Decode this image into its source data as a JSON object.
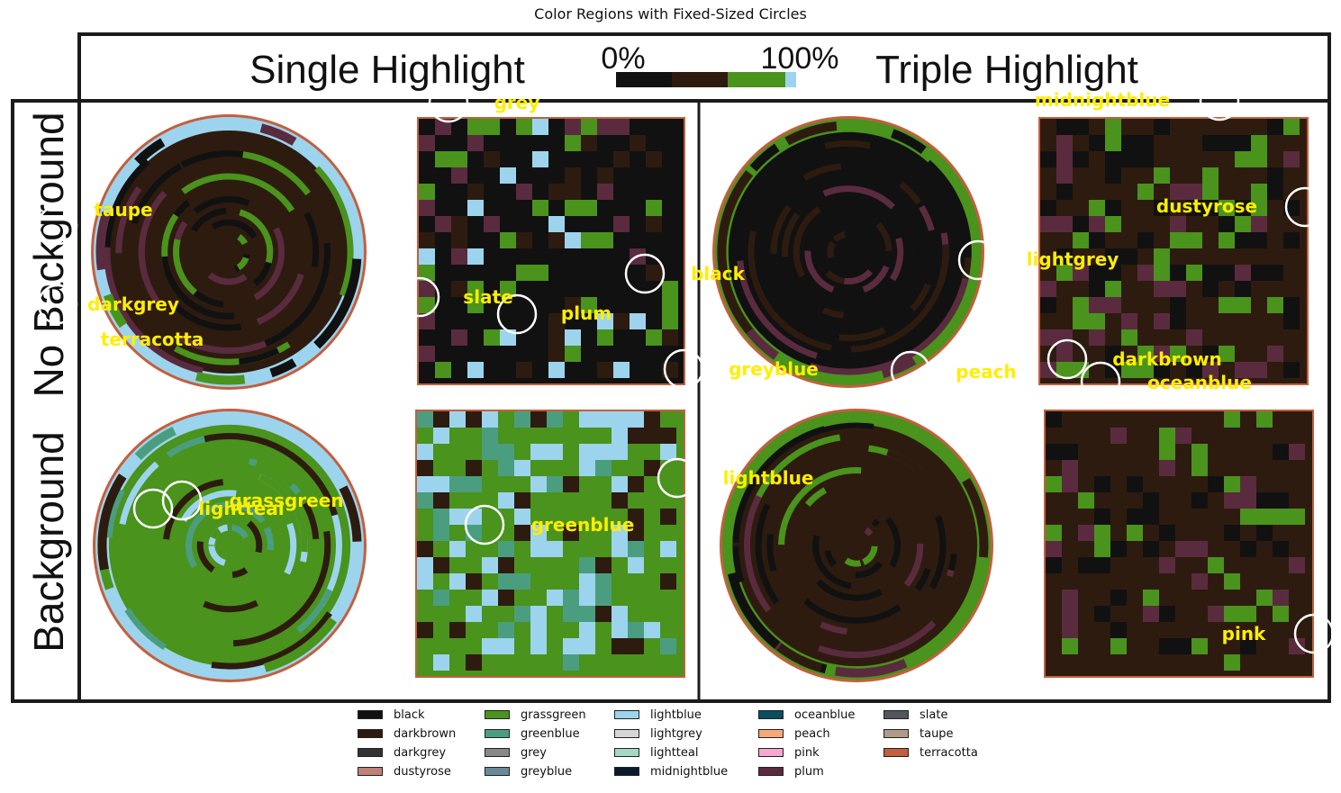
{
  "title": "Color Regions with Fixed-Sized Circles",
  "figure": {
    "header_left": "Single Highlight",
    "header_right": "Triple Highlight",
    "scale_min": "0%",
    "scale_max": "100%",
    "row_top": "No Background",
    "row_bottom": "Background"
  },
  "chart_data": {
    "type": "annotated-image",
    "title": "Color Regions with Fixed-Sized Circles",
    "colors": {
      "black": "#111111",
      "darkbrown": "#2e1b0f",
      "darkgrey": "#333333",
      "dustyrose": "#c0807a",
      "grassgreen": "#4a931c",
      "greenblue": "#4a9e7f",
      "grey": "#888888",
      "greyblue": "#6b8a99",
      "lightblue": "#9cd4ee",
      "lightgrey": "#d6d6d6",
      "lightteal": "#a3d9c4",
      "midnightblue": "#0b1a2a",
      "oceanblue": "#0a4e63",
      "peach": "#f7a878",
      "pink": "#f5a8d0",
      "plum": "#5a2b3f",
      "slate": "#50565c",
      "taupe": "#b09a87",
      "terracotta": "#c35f3e"
    },
    "annotations": [
      {
        "label": "grey"
      },
      {
        "label": "taupe"
      },
      {
        "label": "darkgrey"
      },
      {
        "label": "terracotta"
      },
      {
        "label": "slate"
      },
      {
        "label": "plum"
      },
      {
        "label": "black"
      },
      {
        "label": "greyblue"
      },
      {
        "label": "midnightblue"
      },
      {
        "label": "dustyrose"
      },
      {
        "label": "lightgrey"
      },
      {
        "label": "peach"
      },
      {
        "label": "darkbrown"
      },
      {
        "label": "oceanblue"
      },
      {
        "label": "grassgreen"
      },
      {
        "label": "lightteal"
      },
      {
        "label": "greenblue"
      },
      {
        "label": "lightblue"
      },
      {
        "label": "pink"
      }
    ],
    "legend": [
      {
        "name": "black",
        "color": "#111111"
      },
      {
        "name": "darkbrown",
        "color": "#2e1b0f"
      },
      {
        "name": "darkgrey",
        "color": "#333333"
      },
      {
        "name": "dustyrose",
        "color": "#c0807a"
      },
      {
        "name": "grassgreen",
        "color": "#4a931c"
      },
      {
        "name": "greenblue",
        "color": "#4a9e7f"
      },
      {
        "name": "grey",
        "color": "#888888"
      },
      {
        "name": "greyblue",
        "color": "#6b8a99"
      },
      {
        "name": "lightblue",
        "color": "#9cd4ee"
      },
      {
        "name": "lightgrey",
        "color": "#d6d6d6"
      },
      {
        "name": "lightteal",
        "color": "#a3d9c4"
      },
      {
        "name": "midnightblue",
        "color": "#0b1a2a"
      },
      {
        "name": "oceanblue",
        "color": "#0a4e63"
      },
      {
        "name": "peach",
        "color": "#f7a878"
      },
      {
        "name": "pink",
        "color": "#f5a8d0"
      },
      {
        "name": "plum",
        "color": "#5a2b3f"
      },
      {
        "name": "slate",
        "color": "#50565c"
      },
      {
        "name": "taupe",
        "color": "#b09a87"
      },
      {
        "name": "terracotta",
        "color": "#c35f3e"
      }
    ],
    "legend_placement": "bottom"
  }
}
